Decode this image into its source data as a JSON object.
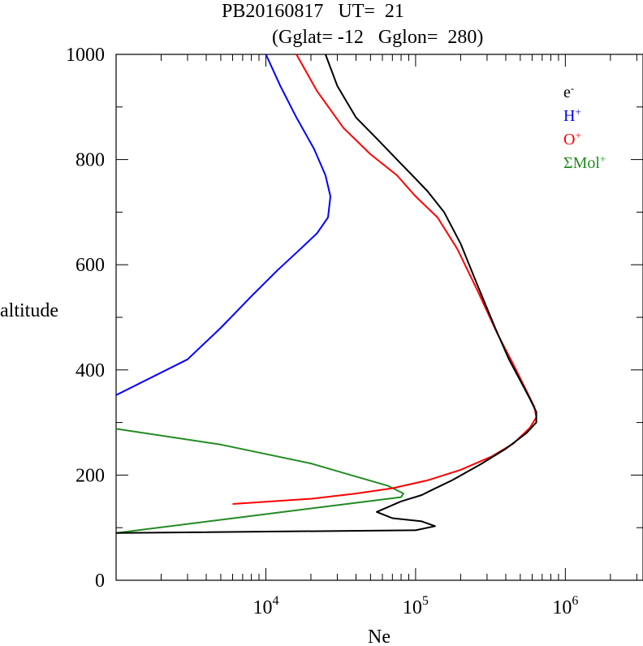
{
  "title": {
    "line1": "PB20160817   UT=  21",
    "line2": "(Gglat= -12   Gglon=  280)"
  },
  "chart_data": {
    "type": "line",
    "xlabel": "Ne",
    "ylabel": "altitude",
    "xscale": "log",
    "xlim": [
      1000,
      3300000
    ],
    "ylim": [
      0,
      1000
    ],
    "xtick_labels": [
      {
        "base": "10",
        "exp": "4",
        "value": 10000
      },
      {
        "base": "10",
        "exp": "5",
        "value": 100000
      },
      {
        "base": "10",
        "exp": "6",
        "value": 1000000
      }
    ],
    "yticks": [
      0,
      200,
      400,
      600,
      800,
      1000
    ],
    "grid": false,
    "legend_position": "top-right",
    "series": [
      {
        "name": "e-",
        "label_base": "e",
        "label_sup": "-",
        "color": "#000000",
        "points": [
          [
            1000,
            90
          ],
          [
            100000,
            95
          ],
          [
            135000,
            103
          ],
          [
            110000,
            112
          ],
          [
            70000,
            118
          ],
          [
            55000,
            130
          ],
          [
            80000,
            150
          ],
          [
            110000,
            162
          ],
          [
            125000,
            170
          ],
          [
            175000,
            190
          ],
          [
            270000,
            220
          ],
          [
            400000,
            250
          ],
          [
            550000,
            280
          ],
          [
            640000,
            300
          ],
          [
            640000,
            320
          ],
          [
            580000,
            345
          ],
          [
            500000,
            380
          ],
          [
            420000,
            420
          ],
          [
            340000,
            480
          ],
          [
            260000,
            560
          ],
          [
            200000,
            640
          ],
          [
            155000,
            700
          ],
          [
            120000,
            740
          ],
          [
            95000,
            770
          ],
          [
            75000,
            800
          ],
          [
            55000,
            840
          ],
          [
            40000,
            880
          ],
          [
            30000,
            940
          ],
          [
            25000,
            1000
          ]
        ]
      },
      {
        "name": "H+",
        "label_base": "H",
        "label_sup": "+",
        "color": "#0000ff",
        "points": [
          [
            1000,
            352
          ],
          [
            3000,
            420
          ],
          [
            5000,
            480
          ],
          [
            8000,
            540
          ],
          [
            12000,
            590
          ],
          [
            17000,
            630
          ],
          [
            22000,
            660
          ],
          [
            26000,
            690
          ],
          [
            27000,
            730
          ],
          [
            25000,
            770
          ],
          [
            21000,
            820
          ],
          [
            16000,
            880
          ],
          [
            12500,
            940
          ],
          [
            10000,
            1000
          ]
        ]
      },
      {
        "name": "O+",
        "label_base": "O",
        "label_sup": "+",
        "color": "#ff0000",
        "points": [
          [
            6000,
            145
          ],
          [
            20000,
            155
          ],
          [
            40000,
            165
          ],
          [
            70000,
            175
          ],
          [
            120000,
            190
          ],
          [
            200000,
            210
          ],
          [
            320000,
            235
          ],
          [
            450000,
            260
          ],
          [
            580000,
            290
          ],
          [
            640000,
            310
          ],
          [
            620000,
            330
          ],
          [
            550000,
            360
          ],
          [
            450000,
            410
          ],
          [
            350000,
            470
          ],
          [
            260000,
            550
          ],
          [
            190000,
            630
          ],
          [
            140000,
            690
          ],
          [
            100000,
            730
          ],
          [
            75000,
            770
          ],
          [
            50000,
            810
          ],
          [
            33000,
            860
          ],
          [
            22000,
            930
          ],
          [
            16000,
            1000
          ]
        ]
      },
      {
        "name": "ΣMol+",
        "label_base": "ΣMol",
        "label_sup": "+",
        "color": "#228b22",
        "points": [
          [
            1000,
            288
          ],
          [
            5000,
            258
          ],
          [
            20000,
            222
          ],
          [
            37000,
            200
          ],
          [
            65000,
            180
          ],
          [
            83000,
            165
          ],
          [
            80000,
            158
          ],
          [
            1000,
            90
          ]
        ]
      }
    ]
  }
}
